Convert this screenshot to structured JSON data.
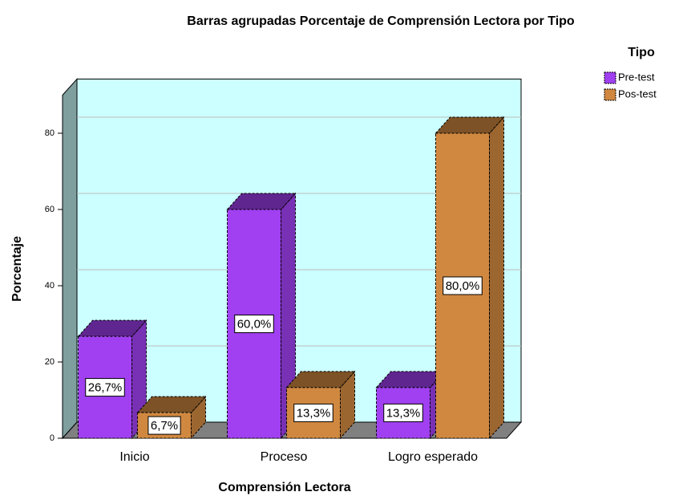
{
  "chart_data": {
    "type": "bar3d",
    "title": "Barras agrupadas Porcentaje de Comprensión Lectora  por Tipo",
    "x_label": "Comprensión Lectora",
    "y_label": "Porcentaje",
    "legend_title": "Tipo",
    "legend_position": "upper right",
    "categories": [
      "Inicio",
      "Proceso",
      "Logro esperado"
    ],
    "series": [
      {
        "name": "Pre-test",
        "color": "#a040f0",
        "values": [
          26.7,
          60.0,
          13.3
        ],
        "value_labels": [
          "26,7%",
          "60,0%",
          "13,3%"
        ]
      },
      {
        "name": "Pos-test",
        "color": "#d08840",
        "values": [
          6.7,
          13.3,
          80.0
        ],
        "value_labels": [
          "6,7%",
          "13,3%",
          "80,0%"
        ]
      }
    ],
    "ylim": [
      0,
      90
    ],
    "yticks": [
      0,
      20,
      40,
      60,
      80
    ],
    "grid": true
  }
}
